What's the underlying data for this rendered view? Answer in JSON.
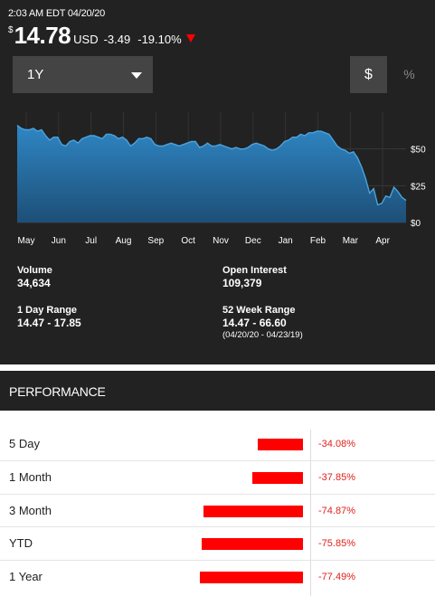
{
  "header": {
    "timestamp": "2:03 AM EDT 04/20/20",
    "currency_symbol": "$",
    "price": "14.78",
    "currency": "USD",
    "change": "-3.49",
    "change_pct": "-19.10%",
    "direction_icon": "down-triangle-icon"
  },
  "controls": {
    "range_label": "1Y",
    "dollar_label": "$",
    "percent_label": "%"
  },
  "chart_data": {
    "type": "area",
    "x_tick_labels": [
      "May",
      "Jun",
      "Jul",
      "Aug",
      "Sep",
      "Oct",
      "Nov",
      "Dec",
      "Jan",
      "Feb",
      "Mar",
      "Apr"
    ],
    "y_tick_labels": [
      "$50",
      "$25",
      "$0"
    ],
    "y_ticks": [
      50,
      25,
      0
    ],
    "ylim": [
      0,
      75
    ],
    "grid": true,
    "series": [
      {
        "values": [
          66,
          64,
          63,
          63,
          64,
          62,
          63,
          59,
          56,
          58,
          58,
          53,
          52,
          55,
          56,
          54,
          57,
          58,
          59,
          59,
          58,
          57,
          60,
          60,
          59,
          57,
          58,
          56,
          52,
          54,
          57,
          57,
          58,
          57,
          53,
          52,
          52,
          53,
          54,
          53,
          52,
          53,
          54,
          55,
          55,
          51,
          52,
          54,
          52,
          52,
          53,
          52,
          51,
          50,
          51,
          50,
          50,
          51,
          53,
          54,
          53,
          52,
          50,
          49,
          50,
          52,
          55,
          56,
          58,
          58,
          60,
          59,
          61,
          61,
          62,
          62,
          61,
          60,
          56,
          52,
          50,
          49,
          47,
          48,
          44,
          38,
          30,
          20,
          23,
          12,
          13,
          18,
          17,
          24,
          21,
          17,
          15
        ]
      }
    ]
  },
  "stats": {
    "volume_label": "Volume",
    "volume_value": "34,634",
    "open_interest_label": "Open Interest",
    "open_interest_value": "109,379",
    "day_range_label": "1 Day Range",
    "day_range_value": "14.47 - 17.85",
    "week52_label": "52 Week Range",
    "week52_value": "14.47 - 66.60",
    "week52_dates": "(04/20/20 - 04/23/19)"
  },
  "performance": {
    "title": "PERFORMANCE",
    "bar_color": "#ff0000",
    "rows": [
      {
        "label": "5 Day",
        "value": "-34.08%",
        "pct": -34.08
      },
      {
        "label": "1 Month",
        "value": "-37.85%",
        "pct": -37.85
      },
      {
        "label": "3 Month",
        "value": "-74.87%",
        "pct": -74.87
      },
      {
        "label": "YTD",
        "value": "-75.85%",
        "pct": -75.85
      },
      {
        "label": "1 Year",
        "value": "-77.49%",
        "pct": -77.49
      }
    ]
  }
}
